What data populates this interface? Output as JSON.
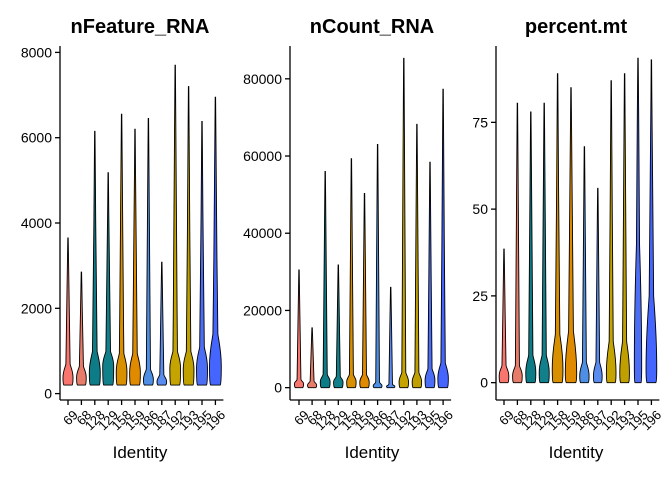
{
  "colors": [
    "#F8766D",
    "#E87C6A",
    "#0E7C87",
    "#12808A",
    "#D89000",
    "#E08A00",
    "#4E8EE4",
    "#5A8CF0",
    "#C5A300",
    "#BFA000",
    "#4C6EF5",
    "#4466FF"
  ],
  "chart_data": [
    {
      "type": "violin",
      "title": "nFeature_RNA",
      "xlabel": "Identity",
      "ylabel": "",
      "categories": [
        "69",
        "68",
        "128",
        "129",
        "158",
        "159",
        "186",
        "187",
        "192",
        "193",
        "195",
        "196"
      ],
      "ylim": [
        -150,
        8150
      ],
      "yticks": [
        0,
        2000,
        4000,
        6000,
        8000
      ],
      "ytick_labels": [
        "0",
        "2000",
        "4000",
        "6000",
        "8000"
      ],
      "min": [
        200,
        200,
        200,
        200,
        200,
        200,
        200,
        200,
        200,
        200,
        200,
        200
      ],
      "mode": [
        380,
        380,
        500,
        650,
        520,
        500,
        330,
        280,
        600,
        580,
        600,
        650
      ],
      "q3": [
        700,
        650,
        1000,
        1000,
        950,
        950,
        580,
        450,
        1000,
        1000,
        1100,
        1400
      ],
      "max": [
        3650,
        2850,
        6150,
        5180,
        6550,
        6200,
        6450,
        3080,
        7700,
        7200,
        6380,
        6950
      ],
      "halfwidth": [
        0.75,
        0.72,
        0.82,
        0.82,
        0.8,
        0.8,
        0.74,
        0.72,
        0.8,
        0.8,
        0.82,
        0.88
      ]
    },
    {
      "type": "violin",
      "title": "nCount_RNA",
      "xlabel": "Identity",
      "ylabel": "",
      "categories": [
        "69",
        "68",
        "128",
        "129",
        "158",
        "159",
        "186",
        "187",
        "192",
        "193",
        "195",
        "196"
      ],
      "ylim": [
        -3200,
        88500
      ],
      "yticks": [
        0,
        20000,
        40000,
        60000,
        80000
      ],
      "ytick_labels": [
        "0",
        "20000",
        "40000",
        "60000",
        "80000"
      ],
      "min": [
        0,
        0,
        0,
        0,
        0,
        0,
        0,
        0,
        0,
        0,
        0,
        0
      ],
      "mode": [
        1000,
        600,
        1500,
        1500,
        1500,
        1400,
        500,
        300,
        1500,
        1500,
        2000,
        2500
      ],
      "q3": [
        2200,
        1800,
        3500,
        3000,
        3500,
        3500,
        1500,
        1000,
        4000,
        4000,
        5000,
        6500
      ],
      "max": [
        30500,
        15500,
        56000,
        31800,
        59300,
        50300,
        63000,
        26000,
        85300,
        68200,
        58400,
        77300
      ],
      "halfwidth": [
        0.7,
        0.7,
        0.75,
        0.72,
        0.72,
        0.72,
        0.68,
        0.64,
        0.72,
        0.72,
        0.75,
        0.8
      ]
    },
    {
      "type": "violin",
      "title": "percent.mt",
      "xlabel": "Identity",
      "ylabel": "",
      "categories": [
        "69",
        "68",
        "128",
        "129",
        "158",
        "159",
        "186",
        "187",
        "192",
        "193",
        "195",
        "196"
      ],
      "ylim": [
        -5,
        97
      ],
      "yticks": [
        0,
        25,
        50,
        75
      ],
      "ytick_labels": [
        "0",
        "25",
        "50",
        "75"
      ],
      "min": [
        0,
        0,
        0,
        0,
        0,
        0,
        0,
        0,
        0,
        0,
        0,
        0
      ],
      "mode": [
        2,
        2,
        3,
        3,
        4,
        3,
        2,
        2,
        3,
        3,
        5,
        4
      ],
      "q3": [
        5,
        5,
        8,
        8,
        14,
        15,
        6,
        6,
        12,
        12,
        40,
        25
      ],
      "max": [
        38.5,
        80.5,
        78,
        80.5,
        89,
        85,
        68,
        56,
        87,
        89,
        93.5,
        93
      ],
      "halfwidth": [
        0.72,
        0.72,
        0.75,
        0.75,
        0.8,
        0.85,
        0.7,
        0.65,
        0.72,
        0.72,
        0.55,
        0.8
      ]
    }
  ]
}
